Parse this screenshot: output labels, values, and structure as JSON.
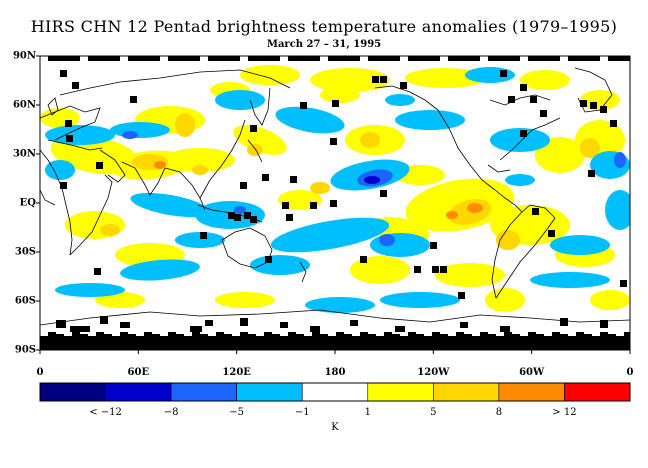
{
  "title": "HIRS CHN 12 Pentad brightness temperature anomalies (1979–1995)",
  "subtitle": "March 27 – 31, 1995",
  "lat_labels": [
    "90N",
    "60N",
    "30N",
    "EQ",
    "30S",
    "60S",
    "90S"
  ],
  "lon_labels": [
    "0",
    "60E",
    "120E",
    "180",
    "120W",
    "60W",
    "0"
  ],
  "colorbar": {
    "colors": [
      "#000080",
      "#0000cd",
      "#1e64ff",
      "#00bfff",
      "#ffffff",
      "#ffff00",
      "#ffd700",
      "#ff8c00",
      "#ff0000"
    ],
    "labels": [
      "< −12",
      "−8",
      "−5",
      "−1",
      "1",
      "5",
      "8",
      "> 12"
    ],
    "unit": "K"
  },
  "map_colors": {
    "cold": "#00bfff",
    "colder": "#1e64ff",
    "coldest": "#0000cd",
    "warm": "#ffff00",
    "warmer": "#ffd700",
    "warmest": "#ff8c00",
    "missing": "#000000",
    "coast": "#000000"
  }
}
